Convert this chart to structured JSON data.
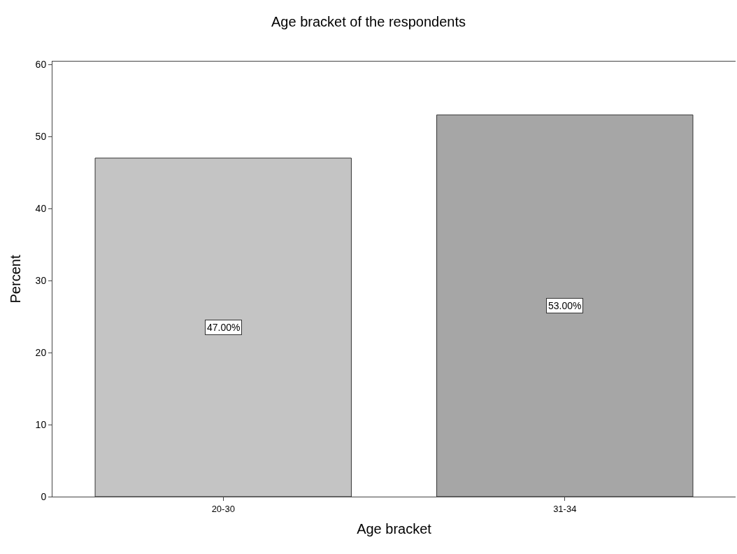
{
  "chart_data": {
    "type": "bar",
    "title": "Age bracket of the respondents",
    "xlabel": "Age bracket",
    "ylabel": "Percent",
    "categories": [
      "20-30",
      "31-34"
    ],
    "values": [
      47,
      53
    ],
    "colors": [
      "#c4c4c4",
      "#a6a6a6"
    ],
    "value_labels": [
      "47.00%",
      "53.00%"
    ],
    "ylim": [
      0,
      60.4
    ],
    "yticks": [
      0,
      10,
      20,
      30,
      40,
      50,
      60
    ]
  }
}
